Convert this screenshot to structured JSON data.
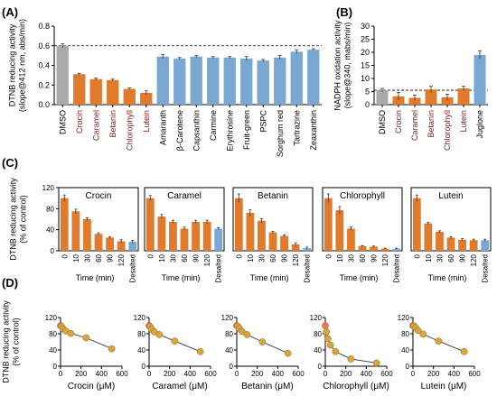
{
  "panel_letters": {
    "a": "(A)",
    "b": "(B)",
    "c": "(C)",
    "d": "(D)"
  },
  "colors": {
    "dmso": "#aaaaaa",
    "natural": "#e07a2c",
    "synthetic": "#7ba7d3",
    "scatter": "#d9a441",
    "scatter_first": "#e8785a",
    "natural_label": "#8b1a1a"
  },
  "chart_data": [
    {
      "id": "A",
      "type": "bar",
      "ylabel": "DTNB reducing activity\n(slope@412 nm, abs/min)",
      "ylim": [
        0,
        0.8
      ],
      "yticks": [
        0.0,
        0.2,
        0.4,
        0.6,
        0.8
      ],
      "reference_line": 0.6,
      "categories": [
        "DMSO",
        "Crocin",
        "Caramel",
        "Betanin",
        "Chlorophyll",
        "Lutein",
        "Amaranth",
        "β-Carotene",
        "Capsanthin",
        "Carmine",
        "Erythrosine",
        "Fruit-green",
        "PSPC",
        "Sorghum red",
        "Tartrazine",
        "Zeaxanthin"
      ],
      "groups": [
        "control",
        "natural",
        "natural",
        "natural",
        "natural",
        "natural",
        "synthetic",
        "synthetic",
        "synthetic",
        "synthetic",
        "synthetic",
        "synthetic",
        "synthetic",
        "synthetic",
        "synthetic",
        "synthetic"
      ],
      "values": [
        0.6,
        0.31,
        0.26,
        0.25,
        0.16,
        0.12,
        0.49,
        0.47,
        0.49,
        0.48,
        0.48,
        0.47,
        0.45,
        0.48,
        0.54,
        0.56
      ],
      "errors": [
        0.02,
        0.01,
        0.01,
        0.01,
        0.01,
        0.02,
        0.02,
        0.01,
        0.01,
        0.01,
        0.01,
        0.02,
        0.01,
        0.02,
        0.02,
        0.01
      ]
    },
    {
      "id": "B",
      "type": "bar",
      "ylabel": "NADPH oxidation activity\n(slope@340, mabs/min)",
      "ylim": [
        0,
        30
      ],
      "yticks": [
        0,
        5,
        10,
        15,
        20,
        25,
        30
      ],
      "reference_line": 5.5,
      "categories": [
        "DMSO",
        "Crocin",
        "Caramel",
        "Betanin",
        "Chlorophyll",
        "Lutein",
        "Juglone"
      ],
      "groups": [
        "control",
        "natural",
        "natural",
        "natural",
        "natural",
        "natural",
        "synthetic"
      ],
      "values": [
        5.5,
        3.2,
        2.6,
        5.8,
        2.8,
        6.2,
        19.0
      ],
      "errors": [
        0.7,
        1.5,
        1.0,
        1.2,
        1.2,
        0.8,
        1.6
      ]
    },
    {
      "id": "C",
      "type": "bar",
      "ylabel": "DTNB reducing activity\n(% of control)",
      "ylim": [
        0,
        120
      ],
      "yticks": [
        0,
        40,
        80,
        120
      ],
      "xlabel": "Time (min)",
      "categories": [
        "0",
        "10",
        "30",
        "60",
        "90",
        "120",
        "Desalted"
      ],
      "subplots": [
        {
          "title": "Crocin",
          "values": [
            100,
            75,
            60,
            32,
            25,
            18,
            17
          ],
          "errors": [
            6,
            4,
            3,
            2,
            2,
            3,
            3
          ]
        },
        {
          "title": "Caramel",
          "values": [
            100,
            65,
            55,
            42,
            55,
            55,
            42
          ],
          "errors": [
            5,
            4,
            3,
            3,
            3,
            3,
            2
          ]
        },
        {
          "title": "Betanin",
          "values": [
            100,
            72,
            57,
            35,
            28,
            12,
            5
          ],
          "errors": [
            8,
            6,
            4,
            2,
            2,
            3,
            2
          ]
        },
        {
          "title": "Chlorophyll",
          "values": [
            100,
            77,
            42,
            9,
            8,
            4,
            4
          ],
          "errors": [
            8,
            7,
            3,
            1,
            1,
            1,
            1
          ]
        },
        {
          "title": "Lutein",
          "values": [
            100,
            52,
            36,
            25,
            21,
            20,
            20
          ],
          "errors": [
            6,
            2,
            2,
            2,
            2,
            2,
            2
          ]
        }
      ]
    },
    {
      "id": "D",
      "type": "scatter",
      "ylabel": "DTNB reducing activity\n(% of control)",
      "ylim": [
        0,
        120
      ],
      "yticks": [
        0,
        40,
        80,
        120
      ],
      "xlim": [
        0,
        600
      ],
      "xticks": [
        0,
        200,
        400,
        600
      ],
      "subplots": [
        {
          "xlabel": "Crocin (μM)",
          "x": [
            0,
            10,
            25,
            50,
            100,
            250,
            500
          ],
          "y": [
            100,
            98,
            92,
            87,
            81,
            70,
            43
          ]
        },
        {
          "xlabel": "Caramel (μM)",
          "x": [
            0,
            10,
            25,
            50,
            100,
            250,
            500
          ],
          "y": [
            100,
            97,
            91,
            85,
            78,
            62,
            36
          ]
        },
        {
          "xlabel": "Betanin (μM)",
          "x": [
            0,
            10,
            25,
            50,
            100,
            250,
            500
          ],
          "y": [
            100,
            98,
            93,
            86,
            78,
            60,
            32
          ]
        },
        {
          "xlabel": "Chlorophyll (μM)",
          "x": [
            0,
            10,
            25,
            50,
            100,
            250,
            500
          ],
          "y": [
            100,
            85,
            68,
            52,
            36,
            18,
            8
          ]
        },
        {
          "xlabel": "Lutein (μM)",
          "x": [
            0,
            10,
            25,
            50,
            100,
            250,
            500
          ],
          "y": [
            100,
            99,
            95,
            88,
            79,
            62,
            36
          ]
        }
      ]
    }
  ]
}
